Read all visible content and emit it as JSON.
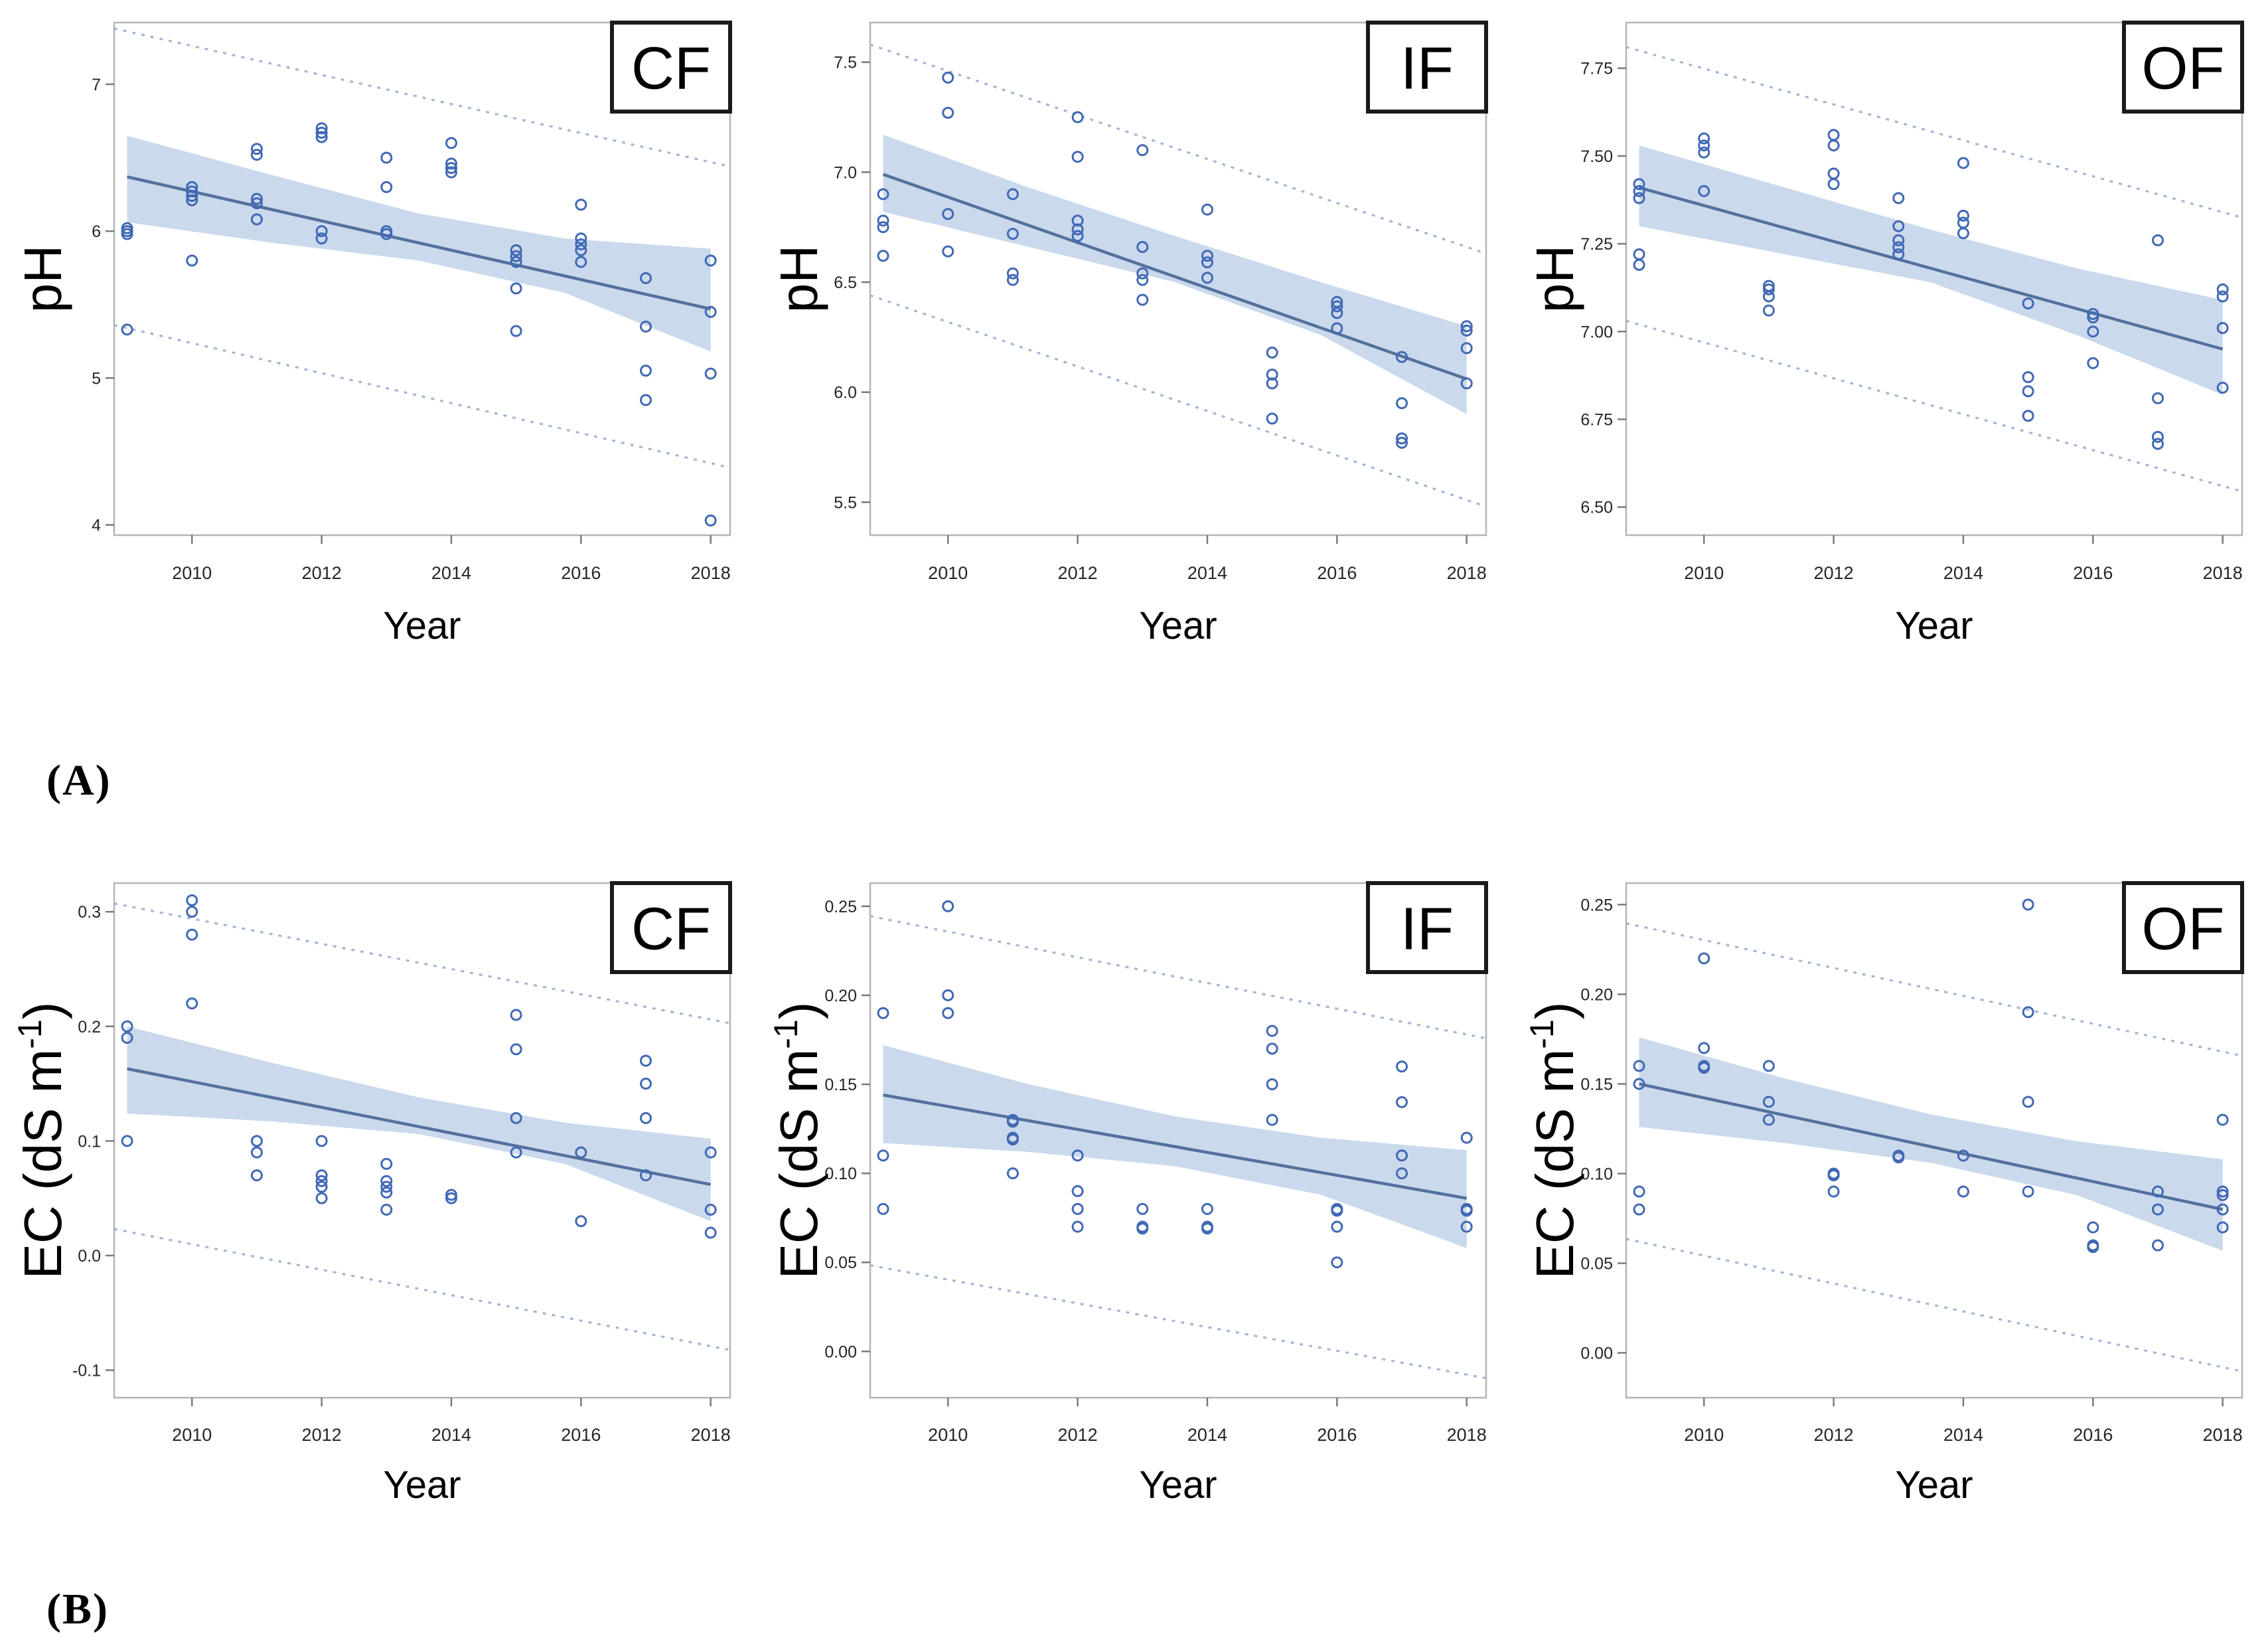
{
  "figure": {
    "panel_a_label": "(A)",
    "panel_b_label": "(B)",
    "xlabel": "Year",
    "xlim": [
      2008.8,
      2018.3
    ],
    "x_ticks": [
      2010,
      2012,
      2014,
      2016,
      2018
    ],
    "x_tick_labels": [
      "2010",
      "2012",
      "2014",
      "2016",
      "2018"
    ]
  },
  "colors": {
    "point_stroke": "#4169b5",
    "trend_line": "#54719c",
    "ci_band_fill": "#c4d5ea",
    "pred_dash": "#a5b6d3",
    "plot_border": "#b4b4b4",
    "tick_mark": "#7a7a7a",
    "tick_text": "#262626",
    "axis_title_text": "#000000",
    "group_box_border": "#1a1a1a",
    "group_box_fill": "#ffffff",
    "background": "#ffffff"
  },
  "chart_data": [
    {
      "id": "ph-cf",
      "type": "scatter",
      "row": "A",
      "col": 0,
      "group_label": "CF",
      "ylabel": {
        "text": "pH",
        "sup": "",
        "end": ""
      },
      "ylim": [
        3.93,
        7.42
      ],
      "yticks": {
        "values": [
          7,
          6,
          5,
          4
        ],
        "labels": [
          "7",
          "6",
          "5",
          "4"
        ]
      },
      "points": [
        {
          "year": 2009,
          "values": [
            6.02,
            6.0,
            5.98,
            5.33
          ]
        },
        {
          "year": 2010,
          "values": [
            6.3,
            6.27,
            6.24,
            6.21,
            5.8
          ]
        },
        {
          "year": 2011,
          "values": [
            6.56,
            6.52,
            6.22,
            6.19,
            6.08
          ]
        },
        {
          "year": 2012,
          "values": [
            6.7,
            6.67,
            6.64,
            6.0,
            5.95
          ]
        },
        {
          "year": 2013,
          "values": [
            6.5,
            6.3,
            6.0,
            5.98
          ]
        },
        {
          "year": 2014,
          "values": [
            6.6,
            6.46,
            6.43,
            6.4
          ]
        },
        {
          "year": 2015,
          "values": [
            5.87,
            5.83,
            5.79,
            5.61,
            5.32
          ]
        },
        {
          "year": 2016,
          "values": [
            6.18,
            5.95,
            5.91,
            5.87,
            5.79
          ]
        },
        {
          "year": 2017,
          "values": [
            5.68,
            5.35,
            5.05,
            4.85
          ]
        },
        {
          "year": 2018,
          "values": [
            5.8,
            5.45,
            5.03,
            4.03
          ]
        }
      ],
      "trend": {
        "x": [
          2009,
          2018
        ],
        "y": [
          6.37,
          5.47
        ]
      },
      "ci_band": {
        "x": [
          2009,
          2011.25,
          2013.5,
          2015.75,
          2018
        ],
        "upper": [
          6.65,
          6.38,
          6.12,
          5.95,
          5.88
        ],
        "lower": [
          6.06,
          5.92,
          5.8,
          5.58,
          5.18
        ]
      },
      "pred_upper": {
        "x": [
          2009,
          2018
        ],
        "y": [
          7.36,
          6.47
        ]
      },
      "pred_lower": {
        "x": [
          2009,
          2018
        ],
        "y": [
          5.34,
          4.42
        ]
      }
    },
    {
      "id": "ph-if",
      "type": "scatter",
      "row": "A",
      "col": 1,
      "group_label": "IF",
      "ylabel": {
        "text": "pH",
        "sup": "",
        "end": ""
      },
      "ylim": [
        5.35,
        7.68
      ],
      "yticks": {
        "values": [
          7.5,
          7.0,
          6.5,
          6.0,
          5.5
        ],
        "labels": [
          "7.5",
          "7.0",
          "6.5",
          "6.0",
          "5.5"
        ]
      },
      "points": [
        {
          "year": 2009,
          "values": [
            6.9,
            6.78,
            6.75,
            6.62
          ]
        },
        {
          "year": 2010,
          "values": [
            7.43,
            7.27,
            6.81,
            6.64
          ]
        },
        {
          "year": 2011,
          "values": [
            6.9,
            6.72,
            6.54,
            6.51
          ]
        },
        {
          "year": 2012,
          "values": [
            7.25,
            7.07,
            6.78,
            6.74,
            6.71
          ]
        },
        {
          "year": 2013,
          "values": [
            7.1,
            6.66,
            6.54,
            6.51,
            6.42
          ]
        },
        {
          "year": 2014,
          "values": [
            6.83,
            6.62,
            6.59,
            6.52
          ]
        },
        {
          "year": 2015,
          "values": [
            6.18,
            6.08,
            6.04,
            5.88
          ]
        },
        {
          "year": 2016,
          "values": [
            6.41,
            6.39,
            6.36,
            6.29
          ]
        },
        {
          "year": 2017,
          "values": [
            6.16,
            5.95,
            5.79,
            5.77
          ]
        },
        {
          "year": 2018,
          "values": [
            6.3,
            6.28,
            6.2,
            6.04
          ]
        }
      ],
      "trend": {
        "x": [
          2009,
          2018
        ],
        "y": [
          6.99,
          6.06
        ]
      },
      "ci_band": {
        "x": [
          2009,
          2011.25,
          2013.5,
          2015.75,
          2018
        ],
        "upper": [
          7.17,
          6.93,
          6.71,
          6.5,
          6.3
        ],
        "lower": [
          6.82,
          6.66,
          6.5,
          6.26,
          5.9
        ]
      },
      "pred_upper": {
        "x": [
          2009,
          2018
        ],
        "y": [
          7.56,
          6.66
        ]
      },
      "pred_lower": {
        "x": [
          2009,
          2018
        ],
        "y": [
          6.42,
          5.51
        ]
      }
    },
    {
      "id": "ph-of",
      "type": "scatter",
      "row": "A",
      "col": 2,
      "group_label": "OF",
      "ylabel": {
        "text": "pH",
        "sup": "",
        "end": ""
      },
      "ylim": [
        6.42,
        7.88
      ],
      "yticks": {
        "values": [
          7.75,
          7.5,
          7.25,
          7.0,
          6.75,
          6.5
        ],
        "labels": [
          "7.75",
          "7.50",
          "7.25",
          "7.00",
          "6.75",
          "6.50"
        ]
      },
      "points": [
        {
          "year": 2009,
          "values": [
            7.42,
            7.4,
            7.38,
            7.22,
            7.19
          ]
        },
        {
          "year": 2010,
          "values": [
            7.55,
            7.53,
            7.51,
            7.4
          ]
        },
        {
          "year": 2011,
          "values": [
            7.13,
            7.12,
            7.1,
            7.06
          ]
        },
        {
          "year": 2012,
          "values": [
            7.56,
            7.53,
            7.45,
            7.42
          ]
        },
        {
          "year": 2013,
          "values": [
            7.38,
            7.3,
            7.26,
            7.24,
            7.22
          ]
        },
        {
          "year": 2014,
          "values": [
            7.48,
            7.33,
            7.31,
            7.28
          ]
        },
        {
          "year": 2015,
          "values": [
            7.08,
            6.87,
            6.83,
            6.76
          ]
        },
        {
          "year": 2016,
          "values": [
            7.05,
            7.04,
            7.0,
            6.91
          ]
        },
        {
          "year": 2017,
          "values": [
            7.26,
            6.81,
            6.7,
            6.68
          ]
        },
        {
          "year": 2018,
          "values": [
            7.12,
            7.1,
            7.01,
            6.84
          ]
        }
      ],
      "trend": {
        "x": [
          2009,
          2018
        ],
        "y": [
          7.41,
          6.95
        ]
      },
      "ci_band": {
        "x": [
          2009,
          2011.25,
          2013.5,
          2015.75,
          2018
        ],
        "upper": [
          7.53,
          7.41,
          7.29,
          7.18,
          7.09
        ],
        "lower": [
          7.3,
          7.22,
          7.14,
          6.99,
          6.82
        ]
      },
      "pred_upper": {
        "x": [
          2009,
          2018
        ],
        "y": [
          7.8,
          7.34
        ]
      },
      "pred_lower": {
        "x": [
          2009,
          2018
        ],
        "y": [
          7.02,
          6.56
        ]
      }
    },
    {
      "id": "ec-cf",
      "type": "scatter",
      "row": "B",
      "col": 0,
      "group_label": "CF",
      "ylabel": {
        "text": "EC (dS m",
        "sup": "-1",
        "end": ")"
      },
      "ylim": [
        -0.124,
        0.325
      ],
      "yticks": {
        "values": [
          0.3,
          0.2,
          0.1,
          0.0,
          -0.1
        ],
        "labels": [
          "0.3",
          "0.2",
          "0.1",
          "0.0",
          "-0.1"
        ]
      },
      "points": [
        {
          "year": 2009,
          "values": [
            0.2,
            0.19,
            0.1
          ]
        },
        {
          "year": 2010,
          "values": [
            0.31,
            0.3,
            0.28,
            0.22
          ]
        },
        {
          "year": 2011,
          "values": [
            0.1,
            0.09,
            0.07
          ]
        },
        {
          "year": 2012,
          "values": [
            0.1,
            0.07,
            0.065,
            0.06,
            0.05
          ]
        },
        {
          "year": 2013,
          "values": [
            0.08,
            0.065,
            0.06,
            0.055,
            0.04
          ]
        },
        {
          "year": 2014,
          "values": [
            0.053,
            0.05
          ]
        },
        {
          "year": 2015,
          "values": [
            0.21,
            0.18,
            0.12,
            0.09
          ]
        },
        {
          "year": 2016,
          "values": [
            0.09,
            0.03
          ]
        },
        {
          "year": 2017,
          "values": [
            0.17,
            0.15,
            0.12,
            0.07
          ]
        },
        {
          "year": 2018,
          "values": [
            0.09,
            0.04,
            0.02
          ]
        }
      ],
      "trend": {
        "x": [
          2009,
          2018
        ],
        "y": [
          0.163,
          0.062
        ]
      },
      "ci_band": {
        "x": [
          2009,
          2011.25,
          2013.5,
          2015.75,
          2018
        ],
        "upper": [
          0.2,
          0.168,
          0.138,
          0.116,
          0.102
        ],
        "lower": [
          0.124,
          0.117,
          0.106,
          0.08,
          0.03
        ]
      },
      "pred_upper": {
        "x": [
          2009,
          2018
        ],
        "y": [
          0.305,
          0.206
        ]
      },
      "pred_lower": {
        "x": [
          2009,
          2018
        ],
        "y": [
          0.021,
          -0.079
        ]
      }
    },
    {
      "id": "ec-if",
      "type": "scatter",
      "row": "B",
      "col": 1,
      "group_label": "IF",
      "ylabel": {
        "text": "EC (dS m",
        "sup": "-1",
        "end": ")"
      },
      "ylim": [
        -0.026,
        0.263
      ],
      "yticks": {
        "values": [
          0.25,
          0.2,
          0.15,
          0.1,
          0.05,
          0.0
        ],
        "labels": [
          "0.25",
          "0.20",
          "0.15",
          "0.10",
          "0.05",
          "0.00"
        ]
      },
      "points": [
        {
          "year": 2009,
          "values": [
            0.19,
            0.11,
            0.08
          ]
        },
        {
          "year": 2010,
          "values": [
            0.25,
            0.2,
            0.19
          ]
        },
        {
          "year": 2011,
          "values": [
            0.13,
            0.129,
            0.12,
            0.119,
            0.1
          ]
        },
        {
          "year": 2012,
          "values": [
            0.11,
            0.09,
            0.08,
            0.07
          ]
        },
        {
          "year": 2013,
          "values": [
            0.08,
            0.07,
            0.069
          ]
        },
        {
          "year": 2014,
          "values": [
            0.08,
            0.07,
            0.069
          ]
        },
        {
          "year": 2015,
          "values": [
            0.18,
            0.17,
            0.15,
            0.13
          ]
        },
        {
          "year": 2016,
          "values": [
            0.08,
            0.079,
            0.07,
            0.05
          ]
        },
        {
          "year": 2017,
          "values": [
            0.16,
            0.14,
            0.11,
            0.1
          ]
        },
        {
          "year": 2018,
          "values": [
            0.12,
            0.08,
            0.079,
            0.07
          ]
        }
      ],
      "trend": {
        "x": [
          2009,
          2018
        ],
        "y": [
          0.144,
          0.086
        ]
      },
      "ci_band": {
        "x": [
          2009,
          2011.25,
          2013.5,
          2015.75,
          2018
        ],
        "upper": [
          0.172,
          0.15,
          0.132,
          0.12,
          0.113
        ],
        "lower": [
          0.117,
          0.112,
          0.104,
          0.088,
          0.058
        ]
      },
      "pred_upper": {
        "x": [
          2009,
          2018
        ],
        "y": [
          0.243,
          0.178
        ]
      },
      "pred_lower": {
        "x": [
          2009,
          2018
        ],
        "y": [
          0.047,
          -0.013
        ]
      }
    },
    {
      "id": "ec-of",
      "type": "scatter",
      "row": "B",
      "col": 2,
      "group_label": "OF",
      "ylabel": {
        "text": "EC (dS m",
        "sup": "-1",
        "end": ")"
      },
      "ylim": [
        -0.025,
        0.262
      ],
      "yticks": {
        "values": [
          0.25,
          0.2,
          0.15,
          0.1,
          0.05,
          0.0
        ],
        "labels": [
          "0.25",
          "0.20",
          "0.15",
          "0.10",
          "0.05",
          "0.00"
        ]
      },
      "points": [
        {
          "year": 2009,
          "values": [
            0.16,
            0.15,
            0.09,
            0.08
          ]
        },
        {
          "year": 2010,
          "values": [
            0.22,
            0.17,
            0.16,
            0.159
          ]
        },
        {
          "year": 2011,
          "values": [
            0.16,
            0.14,
            0.13
          ]
        },
        {
          "year": 2012,
          "values": [
            0.1,
            0.099,
            0.09
          ]
        },
        {
          "year": 2013,
          "values": [
            0.11,
            0.109
          ]
        },
        {
          "year": 2014,
          "values": [
            0.11,
            0.09
          ]
        },
        {
          "year": 2015,
          "values": [
            0.25,
            0.19,
            0.14,
            0.09
          ]
        },
        {
          "year": 2016,
          "values": [
            0.07,
            0.06,
            0.059
          ]
        },
        {
          "year": 2017,
          "values": [
            0.09,
            0.08,
            0.06
          ]
        },
        {
          "year": 2018,
          "values": [
            0.13,
            0.09,
            0.088,
            0.08,
            0.07
          ]
        }
      ],
      "trend": {
        "x": [
          2009,
          2018
        ],
        "y": [
          0.15,
          0.08
        ]
      },
      "ci_band": {
        "x": [
          2009,
          2011.25,
          2013.5,
          2015.75,
          2018
        ],
        "upper": [
          0.176,
          0.153,
          0.133,
          0.118,
          0.108
        ],
        "lower": [
          0.126,
          0.117,
          0.106,
          0.088,
          0.057
        ]
      },
      "pred_upper": {
        "x": [
          2009,
          2018
        ],
        "y": [
          0.238,
          0.168
        ]
      },
      "pred_lower": {
        "x": [
          2009,
          2018
        ],
        "y": [
          0.062,
          -0.008
        ]
      }
    }
  ]
}
